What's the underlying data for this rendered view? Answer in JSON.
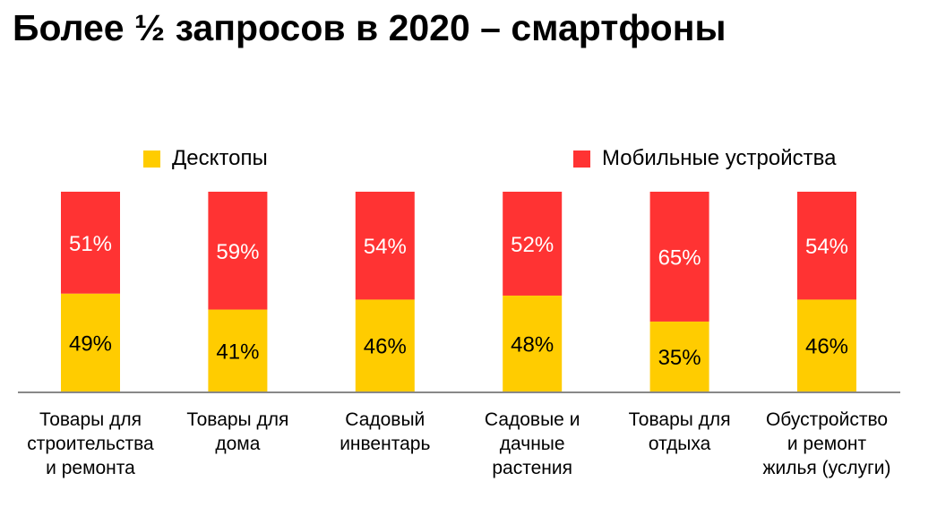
{
  "chart_data": {
    "type": "bar",
    "stacked": true,
    "title": "Более ½ запросов в 2020 – смартфоны",
    "categories": [
      [
        "Товары для",
        "строительства",
        "и ремонта"
      ],
      [
        "Товары для",
        "дома"
      ],
      [
        "Садовый",
        "инвентарь"
      ],
      [
        "Садовые и",
        "дачные",
        "растения"
      ],
      [
        "Товары для",
        "отдыха"
      ],
      [
        "Обустройство",
        "и ремонт",
        "жилья (услуги)"
      ]
    ],
    "series": [
      {
        "name": "Десктопы",
        "color": "#FFCC00",
        "values": [
          49,
          41,
          46,
          48,
          35,
          46
        ],
        "labels": [
          "49%",
          "41%",
          "46%",
          "48%",
          "35%",
          "46%"
        ]
      },
      {
        "name": "Мобильные устройства",
        "color": "#FF3333",
        "values": [
          51,
          59,
          54,
          52,
          65,
          54
        ],
        "labels": [
          "51%",
          "59%",
          "54%",
          "52%",
          "65%",
          "54%"
        ]
      }
    ],
    "ylim": [
      0,
      100
    ],
    "legend": "top",
    "grid": false,
    "xlabel": "",
    "ylabel": ""
  }
}
